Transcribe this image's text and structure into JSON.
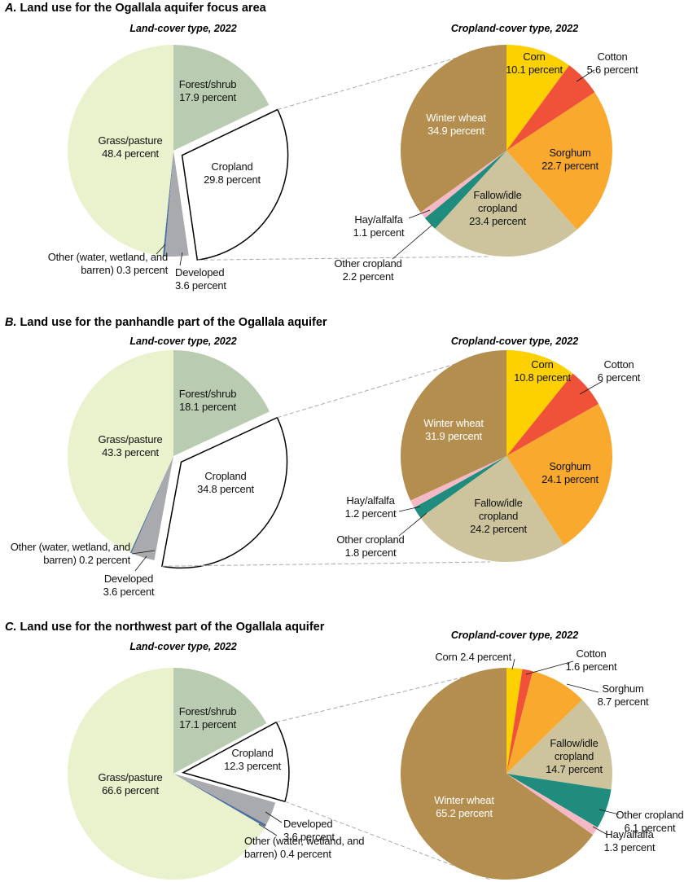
{
  "chart_data": [
    {
      "type": "pie",
      "title": "A. Land use for the Ogallala aquifer focus area",
      "subtitle": "Land-cover type, 2022",
      "categories": [
        "Forest/shrub",
        "Cropland",
        "Developed",
        "Other (water, wetland, and barren)",
        "Grass/pasture"
      ],
      "values": [
        17.9,
        29.8,
        3.6,
        0.3,
        48.4
      ],
      "value_labels": [
        "17.9 percent",
        "29.8 percent",
        "3.6 percent",
        "0.3 percent",
        "48.4 percent"
      ],
      "colors": [
        "#b9ccb1",
        "#ffffff",
        "#a9aaad",
        "#4c6f9f",
        "#e9f1cd"
      ]
    },
    {
      "type": "pie",
      "subtitle": "Cropland-cover type, 2022",
      "categories": [
        "Corn",
        "Cotton",
        "Sorghum",
        "Fallow/idle cropland",
        "Other cropland",
        "Hay/alfalfa",
        "Winter wheat"
      ],
      "values": [
        10.1,
        5.6,
        22.7,
        23.4,
        2.2,
        1.1,
        34.9
      ],
      "value_labels": [
        "10.1 percent",
        "5.6 percent",
        "22.7 percent",
        "23.4 percent",
        "2.2 percent",
        "1.1 percent",
        "34.9 percent"
      ],
      "colors": [
        "#fdd000",
        "#ef5139",
        "#f9a92d",
        "#cdc49d",
        "#1f8c7e",
        "#f5b8c5",
        "#b38e4f"
      ]
    },
    {
      "type": "pie",
      "title": "B. Land use for the panhandle part of the Ogallala aquifer",
      "subtitle": "Land-cover type, 2022",
      "categories": [
        "Forest/shrub",
        "Cropland",
        "Developed",
        "Other (water, wetland, and barren)",
        "Grass/pasture"
      ],
      "values": [
        18.1,
        34.8,
        3.6,
        0.2,
        43.3
      ],
      "value_labels": [
        "18.1 percent",
        "34.8 percent",
        "3.6 percent",
        "0.2 percent",
        "43.3 percent"
      ],
      "colors": [
        "#b9ccb1",
        "#ffffff",
        "#a9aaad",
        "#4c6f9f",
        "#e9f1cd"
      ]
    },
    {
      "type": "pie",
      "subtitle": "Cropland-cover type, 2022",
      "categories": [
        "Corn",
        "Cotton",
        "Sorghum",
        "Fallow/idle cropland",
        "Other cropland",
        "Hay/alfalfa",
        "Winter wheat"
      ],
      "values": [
        10.8,
        6,
        24.1,
        24.2,
        1.8,
        1.2,
        31.9
      ],
      "value_labels": [
        "10.8 percent",
        "6 percent",
        "24.1 percent",
        "24.2 percent",
        "1.8 percent",
        "1.2 percent",
        "31.9 percent"
      ],
      "colors": [
        "#fdd000",
        "#ef5139",
        "#f9a92d",
        "#cdc49d",
        "#1f8c7e",
        "#f5b8c5",
        "#b38e4f"
      ]
    },
    {
      "type": "pie",
      "title": "C. Land use for the northwest part of the Ogallala aquifer",
      "subtitle": "Land-cover type, 2022",
      "categories": [
        "Forest/shrub",
        "Cropland",
        "Developed",
        "Other (water, wetland, and barren)",
        "Grass/pasture"
      ],
      "values": [
        17.1,
        12.3,
        3.6,
        0.4,
        66.6
      ],
      "value_labels": [
        "17.1 percent",
        "12.3 percent",
        "3.6 percent",
        "0.4 percent",
        "66.6 percent"
      ],
      "colors": [
        "#b9ccb1",
        "#ffffff",
        "#a9aaad",
        "#4c6f9f",
        "#e9f1cd"
      ]
    },
    {
      "type": "pie",
      "subtitle": "Cropland-cover type, 2022",
      "categories": [
        "Corn",
        "Cotton",
        "Sorghum",
        "Fallow/idle cropland",
        "Other cropland",
        "Hay/alfalfa",
        "Winter wheat"
      ],
      "values": [
        2.4,
        1.6,
        8.7,
        14.7,
        6.1,
        1.3,
        65.2
      ],
      "value_labels": [
        "2.4 percent",
        "1.6 percent",
        "8.7 percent",
        "14.7 percent",
        "6.1 percent",
        "1.3 percent",
        "65.2 percent"
      ],
      "colors": [
        "#fdd000",
        "#ef5139",
        "#f9a92d",
        "#cdc49d",
        "#1f8c7e",
        "#f5b8c5",
        "#b38e4f"
      ]
    }
  ]
}
